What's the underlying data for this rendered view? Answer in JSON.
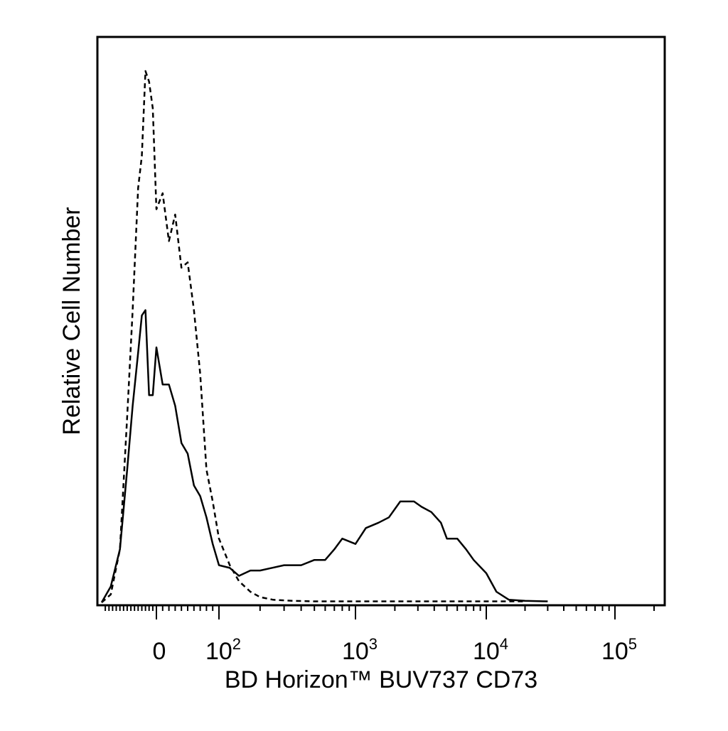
{
  "chart_data": {
    "type": "line",
    "title": "",
    "xlabel": "BD Horizon™ BUV737 CD73",
    "ylabel": "Relative Cell Number",
    "x_scale": "biexponential",
    "xlim": [
      -300,
      200000
    ],
    "ylim": [
      0,
      100
    ],
    "grid": false,
    "legend": "none",
    "line_color": "#000000",
    "x_tick_labels": [
      {
        "value": 0,
        "base": "0",
        "exp": ""
      },
      {
        "value": 100,
        "base": "10",
        "exp": "2"
      },
      {
        "value": 1000,
        "base": "10",
        "exp": "3"
      },
      {
        "value": 10000,
        "base": "10",
        "exp": "4"
      },
      {
        "value": 100000,
        "base": "10",
        "exp": "5"
      }
    ],
    "series": [
      {
        "style": "dashed",
        "x": [
          -300,
          -250,
          -200,
          -160,
          -130,
          -100,
          -80,
          -60,
          -40,
          -20,
          0,
          10,
          20,
          30,
          40,
          50,
          60,
          70,
          80,
          90,
          100,
          120,
          140,
          170,
          200,
          250,
          350,
          500,
          1000,
          5000,
          20000
        ],
        "y": [
          0,
          1.5,
          10,
          35,
          55,
          78,
          84,
          100,
          98,
          93,
          74,
          77,
          68,
          73,
          63,
          64,
          55,
          43,
          25,
          19,
          12,
          7,
          4,
          2,
          1,
          0.5,
          0.3,
          0.2,
          0.2,
          0.2,
          0.2
        ]
      },
      {
        "style": "solid",
        "x": [
          -300,
          -250,
          -200,
          -160,
          -130,
          -100,
          -80,
          -60,
          -40,
          -20,
          0,
          10,
          20,
          30,
          40,
          50,
          60,
          70,
          80,
          90,
          100,
          120,
          140,
          170,
          200,
          300,
          400,
          500,
          600,
          700,
          800,
          1000,
          1200,
          1500,
          1800,
          2200,
          2800,
          3200,
          3800,
          4500,
          5000,
          6000,
          7000,
          8000,
          10000,
          12000,
          15000,
          20000,
          30000
        ],
        "y": [
          0,
          3,
          10,
          25,
          37,
          47,
          54,
          55,
          39,
          39,
          48,
          41,
          41,
          37,
          30,
          28,
          22,
          20,
          16,
          11,
          7,
          6.5,
          5,
          6,
          6,
          7,
          7,
          8,
          8,
          10,
          12,
          11,
          14,
          15,
          16,
          19,
          19,
          18,
          17,
          15,
          12,
          12,
          10,
          8,
          5.5,
          2,
          0.5,
          0.3,
          0.2
        ]
      }
    ]
  }
}
